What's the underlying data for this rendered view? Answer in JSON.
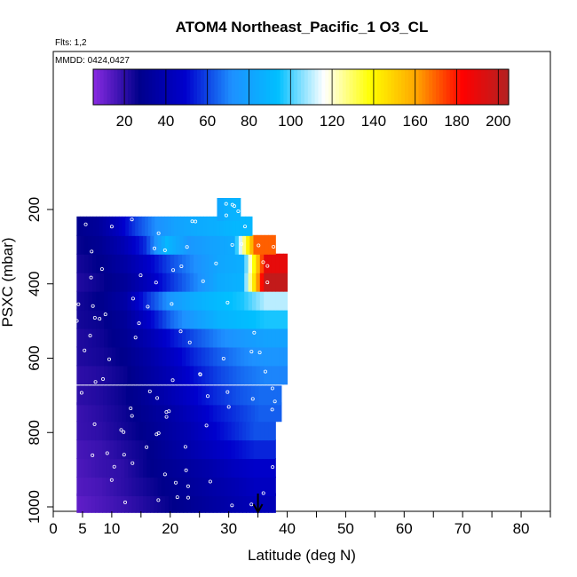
{
  "chart_data": {
    "type": "heatmap",
    "title": "ATOM4 Northeast_Pacific_1 O3_CL",
    "subtitle_flights": "Flts: 1,2",
    "subtitle_dates": "MMDD: 0424,0427",
    "xlabel": "Latitude (deg N)",
    "ylabel": "PSXC (mbar)",
    "xlim": [
      0,
      85
    ],
    "ylim": [
      1000,
      0
    ],
    "x_ticks": [
      0,
      5,
      10,
      20,
      30,
      40,
      50,
      60,
      70,
      80
    ],
    "y_ticks": [
      200,
      400,
      600,
      800,
      1000
    ],
    "colorbar": {
      "range": [
        5,
        205
      ],
      "ticks": [
        20,
        40,
        60,
        80,
        100,
        120,
        140,
        160,
        180,
        200
      ],
      "colors": [
        "#8a2be2",
        "#00008b",
        "#0000cd",
        "#1e90ff",
        "#00bfff",
        "#ffffff",
        "#ffff00",
        "#ffa500",
        "#ff0000",
        "#b22222"
      ]
    },
    "grid": false,
    "legend_position": "top",
    "marker_latitude": 35,
    "series": [
      {
        "pressure": 990,
        "lat_range": [
          4,
          38
        ],
        "values": [
          12,
          15,
          18,
          22,
          26,
          30,
          34,
          38,
          42
        ]
      },
      {
        "pressure": 945,
        "lat_range": [
          4,
          38
        ],
        "values": [
          14,
          16,
          20,
          24,
          28,
          32,
          36,
          40,
          45
        ]
      },
      {
        "pressure": 895,
        "lat_range": [
          4,
          38
        ],
        "values": [
          15,
          18,
          20,
          26,
          30,
          34,
          38,
          44,
          48
        ]
      },
      {
        "pressure": 845,
        "lat_range": [
          4,
          38
        ],
        "values": [
          16,
          18,
          22,
          26,
          32,
          38,
          44,
          50,
          55
        ]
      },
      {
        "pressure": 795,
        "lat_range": [
          4,
          38
        ],
        "values": [
          18,
          20,
          24,
          28,
          34,
          40,
          48,
          55,
          62
        ]
      },
      {
        "pressure": 745,
        "lat_range": [
          4,
          39
        ],
        "values": [
          18,
          21,
          25,
          30,
          36,
          44,
          52,
          58,
          64
        ]
      },
      {
        "pressure": 700,
        "lat_range": [
          4,
          39
        ],
        "values": [
          20,
          22,
          26,
          32,
          40,
          48,
          56,
          62,
          66
        ]
      },
      {
        "pressure": 645,
        "lat_range": [
          4,
          40
        ],
        "values": [
          20,
          22,
          26,
          34,
          42,
          52,
          60,
          66,
          70
        ]
      },
      {
        "pressure": 595,
        "lat_range": [
          4,
          40
        ],
        "values": [
          22,
          24,
          28,
          36,
          46,
          56,
          64,
          70,
          74
        ]
      },
      {
        "pressure": 545,
        "lat_range": [
          4,
          40
        ],
        "values": [
          22,
          25,
          30,
          40,
          52,
          62,
          70,
          76,
          80
        ]
      },
      {
        "pressure": 495,
        "lat_range": [
          4,
          40
        ],
        "values": [
          24,
          26,
          32,
          48,
          66,
          78,
          88,
          92,
          96
        ]
      },
      {
        "pressure": 445,
        "lat_range": [
          4,
          40
        ],
        "values": [
          24,
          28,
          36,
          58,
          76,
          86,
          92,
          96,
          110
        ]
      },
      {
        "pressure": 395,
        "lat_range": [
          4,
          40
        ],
        "values": [
          22,
          26,
          32,
          44,
          58,
          70,
          84,
          88,
          200
        ]
      },
      {
        "pressure": 345,
        "lat_range": [
          4,
          40
        ],
        "values": [
          24,
          28,
          36,
          48,
          62,
          72,
          82,
          86,
          190
        ]
      },
      {
        "pressure": 295,
        "lat_range": [
          4,
          38
        ],
        "values": [
          26,
          30,
          40,
          56,
          90,
          75,
          80,
          84,
          170
        ]
      },
      {
        "pressure": 245,
        "lat_range": [
          4,
          34
        ],
        "values": [
          28,
          32,
          44,
          60,
          72,
          80,
          84,
          86,
          90
        ]
      },
      {
        "pressure": 200,
        "lat_range": [
          28,
          32
        ],
        "values": [
          82,
          86,
          88
        ]
      }
    ]
  }
}
